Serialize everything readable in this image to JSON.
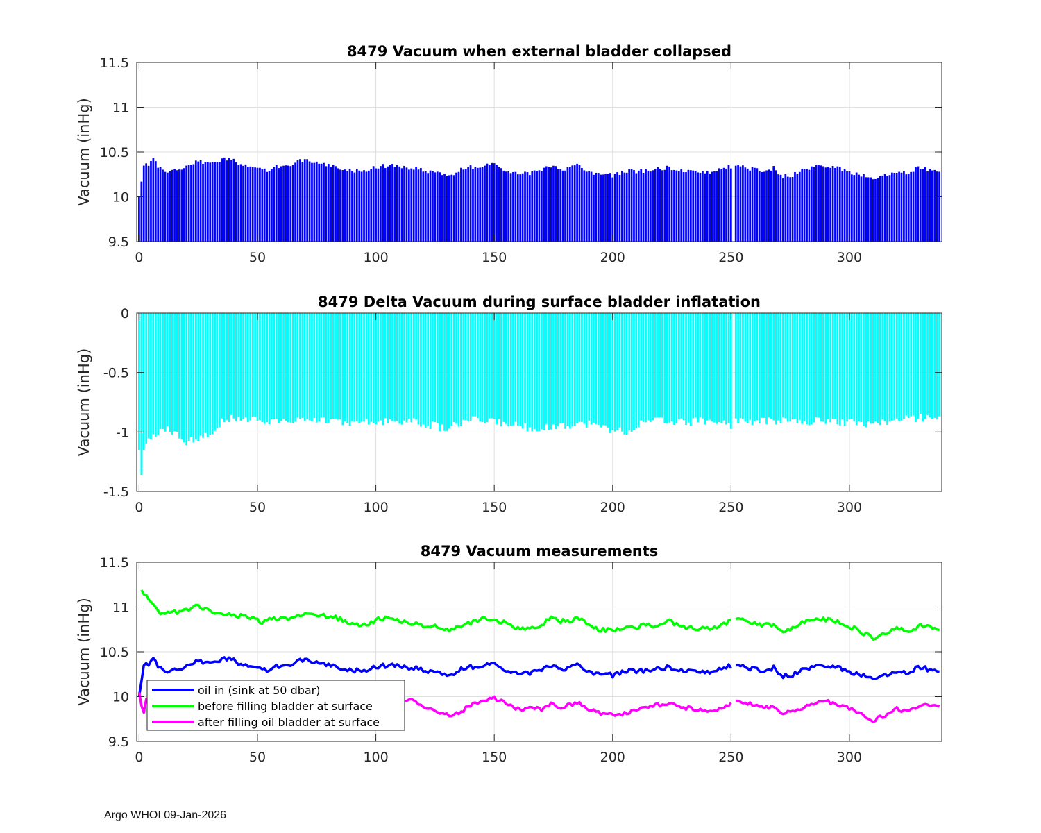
{
  "footer": "Argo WHOI 09-Jan-2026",
  "colors": {
    "blue": "#0000ff",
    "cyan": "#00ffff",
    "green": "#00ff00",
    "magenta": "#ff00ff",
    "grid": "#dfdfdf",
    "axis": "#262626"
  },
  "chart_data": [
    {
      "type": "bar",
      "title": "8479 Vacuum when external bladder collapsed",
      "xlabel": "",
      "ylabel": "Vacuum (inHg)",
      "xlim": [
        -1,
        339
      ],
      "ylim": [
        9.5,
        11.5
      ],
      "xticks": [
        0,
        50,
        100,
        150,
        200,
        250,
        300
      ],
      "yticks": [
        9.5,
        10,
        10.5,
        11,
        11.5
      ],
      "ytick_labels": [
        "9.5",
        "10",
        "10.5",
        "11",
        "11.5"
      ],
      "color": "#0000ff",
      "missing_x": [
        251
      ],
      "series_note": "values per profile 0..338, same as oil-in series",
      "values_ref": "oil_in"
    },
    {
      "type": "bar",
      "title": "8479 Delta Vacuum during surface bladder inflatation",
      "xlabel": "",
      "ylabel": "Vacuum (inHg)",
      "xlim": [
        -1,
        339
      ],
      "ylim": [
        -1.5,
        0
      ],
      "xticks": [
        0,
        50,
        100,
        150,
        200,
        250,
        300
      ],
      "yticks": [
        -1.5,
        -1,
        -0.5,
        0
      ],
      "ytick_labels": [
        "-1.5",
        "-1",
        "-0.5",
        "0"
      ],
      "color": "#00ffff",
      "missing_x": [
        251
      ],
      "values_ref": "delta"
    },
    {
      "type": "line",
      "title": "8479 Vacuum measurements",
      "xlabel": "",
      "ylabel": "Vacuum (inHg)",
      "xlim": [
        -1,
        339
      ],
      "ylim": [
        9.5,
        11.5
      ],
      "xticks": [
        0,
        50,
        100,
        150,
        200,
        250,
        300
      ],
      "yticks": [
        9.5,
        10,
        10.5,
        11,
        11.5
      ],
      "ytick_labels": [
        "9.5",
        "10",
        "10.5",
        "11",
        "11.5"
      ],
      "legend_position": "bottom-left",
      "series": [
        {
          "name": "oil in (sink at 50 dbar)",
          "color": "#0000ff",
          "values_ref": "oil_in"
        },
        {
          "name": "before filling bladder at surface",
          "color": "#00ff00",
          "values_ref": "before"
        },
        {
          "name": "after filling oil bladder at surface",
          "color": "#ff00ff",
          "values_ref": "after"
        }
      ],
      "missing_x": [
        251
      ],
      "anchors": {
        "oil_in": [
          [
            0,
            10.0
          ],
          [
            1,
            10.17
          ],
          [
            2,
            10.37
          ],
          [
            4,
            10.35
          ],
          [
            6,
            10.43
          ],
          [
            8,
            10.33
          ],
          [
            12,
            10.29
          ],
          [
            18,
            10.3
          ],
          [
            20,
            10.35
          ],
          [
            24,
            10.39
          ],
          [
            28,
            10.38
          ],
          [
            34,
            10.41
          ],
          [
            38,
            10.43
          ],
          [
            42,
            10.37
          ],
          [
            48,
            10.35
          ],
          [
            52,
            10.29
          ],
          [
            56,
            10.3
          ],
          [
            60,
            10.36
          ],
          [
            64,
            10.34
          ],
          [
            68,
            10.4
          ],
          [
            72,
            10.4
          ],
          [
            76,
            10.38
          ],
          [
            80,
            10.36
          ],
          [
            86,
            10.3
          ],
          [
            90,
            10.29
          ],
          [
            96,
            10.3
          ],
          [
            100,
            10.33
          ],
          [
            105,
            10.35
          ],
          [
            110,
            10.34
          ],
          [
            116,
            10.32
          ],
          [
            120,
            10.3
          ],
          [
            126,
            10.27
          ],
          [
            132,
            10.24
          ],
          [
            136,
            10.3
          ],
          [
            140,
            10.33
          ],
          [
            146,
            10.35
          ],
          [
            150,
            10.36
          ],
          [
            154,
            10.3
          ],
          [
            158,
            10.28
          ],
          [
            162,
            10.25
          ],
          [
            166,
            10.27
          ],
          [
            170,
            10.3
          ],
          [
            174,
            10.35
          ],
          [
            178,
            10.3
          ],
          [
            182,
            10.33
          ],
          [
            186,
            10.35
          ],
          [
            190,
            10.27
          ],
          [
            194,
            10.25
          ],
          [
            200,
            10.24
          ],
          [
            206,
            10.28
          ],
          [
            212,
            10.29
          ],
          [
            218,
            10.3
          ],
          [
            224,
            10.33
          ],
          [
            228,
            10.28
          ],
          [
            234,
            10.29
          ],
          [
            240,
            10.27
          ],
          [
            246,
            10.33
          ],
          [
            250,
            10.34
          ],
          [
            252,
            10.34
          ],
          [
            256,
            10.33
          ],
          [
            260,
            10.3
          ],
          [
            264,
            10.29
          ],
          [
            268,
            10.32
          ],
          [
            272,
            10.23
          ],
          [
            276,
            10.24
          ],
          [
            280,
            10.3
          ],
          [
            284,
            10.33
          ],
          [
            290,
            10.34
          ],
          [
            294,
            10.33
          ],
          [
            298,
            10.3
          ],
          [
            302,
            10.26
          ],
          [
            306,
            10.23
          ],
          [
            310,
            10.2
          ],
          [
            314,
            10.24
          ],
          [
            318,
            10.27
          ],
          [
            322,
            10.26
          ],
          [
            326,
            10.29
          ],
          [
            330,
            10.33
          ],
          [
            334,
            10.3
          ],
          [
            338,
            10.27
          ]
        ],
        "before": [
          [
            1,
            11.17
          ],
          [
            3,
            11.14
          ],
          [
            5,
            11.05
          ],
          [
            8,
            10.95
          ],
          [
            12,
            10.93
          ],
          [
            16,
            10.94
          ],
          [
            20,
            10.97
          ],
          [
            24,
            11.02
          ],
          [
            28,
            10.97
          ],
          [
            32,
            10.95
          ],
          [
            36,
            10.93
          ],
          [
            40,
            10.9
          ],
          [
            44,
            10.91
          ],
          [
            48,
            10.87
          ],
          [
            52,
            10.83
          ],
          [
            56,
            10.86
          ],
          [
            60,
            10.89
          ],
          [
            64,
            10.87
          ],
          [
            68,
            10.92
          ],
          [
            72,
            10.94
          ],
          [
            76,
            10.92
          ],
          [
            80,
            10.9
          ],
          [
            86,
            10.86
          ],
          [
            90,
            10.82
          ],
          [
            96,
            10.8
          ],
          [
            100,
            10.86
          ],
          [
            105,
            10.87
          ],
          [
            110,
            10.85
          ],
          [
            116,
            10.82
          ],
          [
            120,
            10.8
          ],
          [
            126,
            10.78
          ],
          [
            132,
            10.74
          ],
          [
            136,
            10.8
          ],
          [
            140,
            10.83
          ],
          [
            146,
            10.88
          ],
          [
            150,
            10.86
          ],
          [
            154,
            10.83
          ],
          [
            158,
            10.78
          ],
          [
            162,
            10.76
          ],
          [
            166,
            10.78
          ],
          [
            170,
            10.8
          ],
          [
            174,
            10.88
          ],
          [
            178,
            10.84
          ],
          [
            182,
            10.85
          ],
          [
            186,
            10.87
          ],
          [
            190,
            10.8
          ],
          [
            194,
            10.75
          ],
          [
            200,
            10.74
          ],
          [
            206,
            10.76
          ],
          [
            212,
            10.79
          ],
          [
            218,
            10.8
          ],
          [
            224,
            10.84
          ],
          [
            228,
            10.79
          ],
          [
            234,
            10.77
          ],
          [
            240,
            10.75
          ],
          [
            246,
            10.79
          ],
          [
            250,
            10.85
          ],
          [
            252,
            10.86
          ],
          [
            256,
            10.85
          ],
          [
            260,
            10.82
          ],
          [
            264,
            10.8
          ],
          [
            268,
            10.79
          ],
          [
            272,
            10.73
          ],
          [
            276,
            10.76
          ],
          [
            280,
            10.82
          ],
          [
            284,
            10.85
          ],
          [
            290,
            10.86
          ],
          [
            294,
            10.84
          ],
          [
            298,
            10.8
          ],
          [
            302,
            10.76
          ],
          [
            306,
            10.7
          ],
          [
            310,
            10.66
          ],
          [
            314,
            10.69
          ],
          [
            318,
            10.75
          ],
          [
            322,
            10.76
          ],
          [
            326,
            10.74
          ],
          [
            330,
            10.8
          ],
          [
            334,
            10.79
          ],
          [
            338,
            10.74
          ]
        ],
        "after": [
          [
            0,
            10.05
          ],
          [
            1,
            9.9
          ],
          [
            2,
            9.82
          ],
          [
            3,
            9.97
          ],
          [
            110,
            9.93
          ],
          [
            114,
            9.98
          ],
          [
            118,
            9.92
          ],
          [
            122,
            9.88
          ],
          [
            126,
            9.82
          ],
          [
            132,
            9.78
          ],
          [
            136,
            9.83
          ],
          [
            140,
            9.9
          ],
          [
            146,
            9.95
          ],
          [
            150,
            9.98
          ],
          [
            154,
            9.93
          ],
          [
            158,
            9.88
          ],
          [
            162,
            9.85
          ],
          [
            166,
            9.87
          ],
          [
            170,
            9.86
          ],
          [
            174,
            9.93
          ],
          [
            178,
            9.88
          ],
          [
            182,
            9.9
          ],
          [
            186,
            9.94
          ],
          [
            190,
            9.85
          ],
          [
            194,
            9.82
          ],
          [
            200,
            9.79
          ],
          [
            206,
            9.82
          ],
          [
            212,
            9.88
          ],
          [
            218,
            9.9
          ],
          [
            224,
            9.93
          ],
          [
            228,
            9.89
          ],
          [
            234,
            9.86
          ],
          [
            240,
            9.84
          ],
          [
            246,
            9.86
          ],
          [
            250,
            9.93
          ],
          [
            252,
            9.95
          ],
          [
            256,
            9.93
          ],
          [
            260,
            9.9
          ],
          [
            264,
            9.89
          ],
          [
            268,
            9.87
          ],
          [
            272,
            9.82
          ],
          [
            276,
            9.83
          ],
          [
            280,
            9.88
          ],
          [
            284,
            9.91
          ],
          [
            290,
            9.95
          ],
          [
            294,
            9.92
          ],
          [
            298,
            9.9
          ],
          [
            302,
            9.85
          ],
          [
            306,
            9.8
          ],
          [
            309,
            9.72
          ],
          [
            312,
            9.76
          ],
          [
            316,
            9.8
          ],
          [
            320,
            9.86
          ],
          [
            324,
            9.84
          ],
          [
            328,
            9.86
          ],
          [
            332,
            9.9
          ],
          [
            338,
            9.88
          ]
        ],
        "delta": [
          [
            0,
            -1.15
          ],
          [
            1,
            -1.36
          ],
          [
            2,
            -1.15
          ],
          [
            4,
            -1.05
          ],
          [
            8,
            -1.0
          ],
          [
            12,
            -0.98
          ],
          [
            16,
            -1.02
          ],
          [
            20,
            -1.08
          ],
          [
            24,
            -1.06
          ],
          [
            28,
            -1.04
          ],
          [
            32,
            -0.98
          ],
          [
            36,
            -0.9
          ],
          [
            40,
            -0.88
          ],
          [
            48,
            -0.9
          ],
          [
            56,
            -0.92
          ],
          [
            64,
            -0.9
          ],
          [
            72,
            -0.88
          ],
          [
            80,
            -0.9
          ],
          [
            90,
            -0.93
          ],
          [
            100,
            -0.92
          ],
          [
            110,
            -0.9
          ],
          [
            120,
            -0.93
          ],
          [
            130,
            -0.97
          ],
          [
            140,
            -0.9
          ],
          [
            150,
            -0.91
          ],
          [
            160,
            -0.95
          ],
          [
            170,
            -0.97
          ],
          [
            180,
            -0.94
          ],
          [
            190,
            -0.93
          ],
          [
            200,
            -0.98
          ],
          [
            206,
            -1.0
          ],
          [
            212,
            -0.93
          ],
          [
            220,
            -0.9
          ],
          [
            230,
            -0.92
          ],
          [
            240,
            -0.9
          ],
          [
            250,
            -0.94
          ],
          [
            252,
            -0.9
          ],
          [
            260,
            -0.92
          ],
          [
            270,
            -0.9
          ],
          [
            280,
            -0.92
          ],
          [
            290,
            -0.9
          ],
          [
            300,
            -0.92
          ],
          [
            310,
            -0.93
          ],
          [
            320,
            -0.9
          ],
          [
            330,
            -0.88
          ],
          [
            338,
            -0.86
          ]
        ]
      }
    }
  ]
}
